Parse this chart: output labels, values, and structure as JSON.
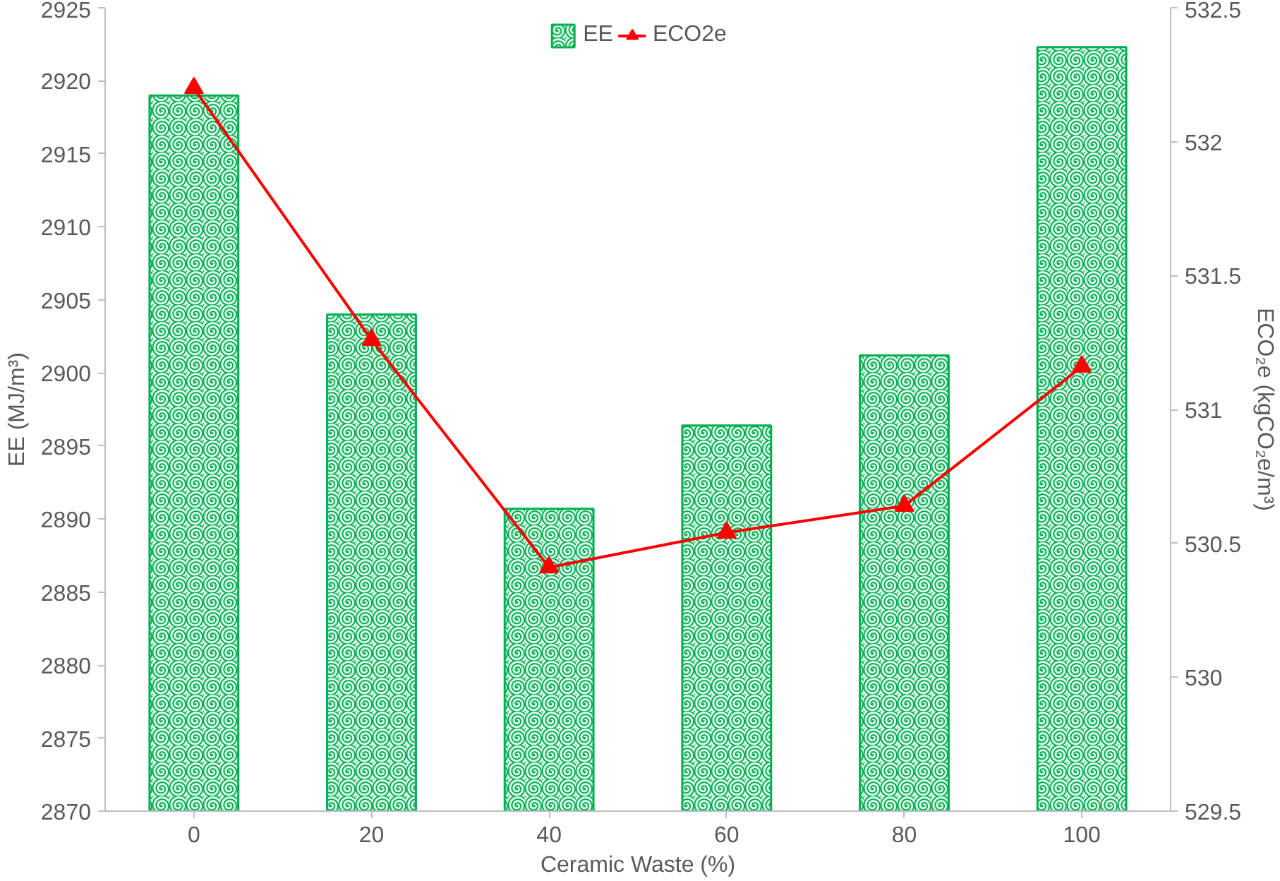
{
  "chart_data": {
    "type": "bar",
    "xlabel": "Ceramic Waste (%)",
    "ylabel": "EE (MJ/m³)",
    "y2label": "ECO₂e (kgCO₂e/m³)",
    "categories": [
      "0",
      "20",
      "40",
      "60",
      "80",
      "100"
    ],
    "series": [
      {
        "name": "EE",
        "color": "#00b050",
        "values": [
          2919,
          2904,
          2890.7,
          2896.4,
          2901.2,
          2922.3
        ]
      },
      {
        "name": "ECO2e",
        "type": "line",
        "axis": "y2",
        "color": "#ff0000",
        "marker": "triangle",
        "values": [
          532.2,
          531.26,
          530.41,
          530.54,
          530.64,
          531.16
        ]
      }
    ],
    "ylim": [
      2870,
      2925
    ],
    "yticks": [
      2870,
      2875,
      2880,
      2885,
      2890,
      2895,
      2900,
      2905,
      2910,
      2915,
      2920,
      2925
    ],
    "y2lim": [
      529.5,
      532.5
    ],
    "y2ticks": [
      529.5,
      530,
      530.5,
      531,
      531.5,
      532,
      532.5
    ],
    "grid": false,
    "legend": "top"
  }
}
